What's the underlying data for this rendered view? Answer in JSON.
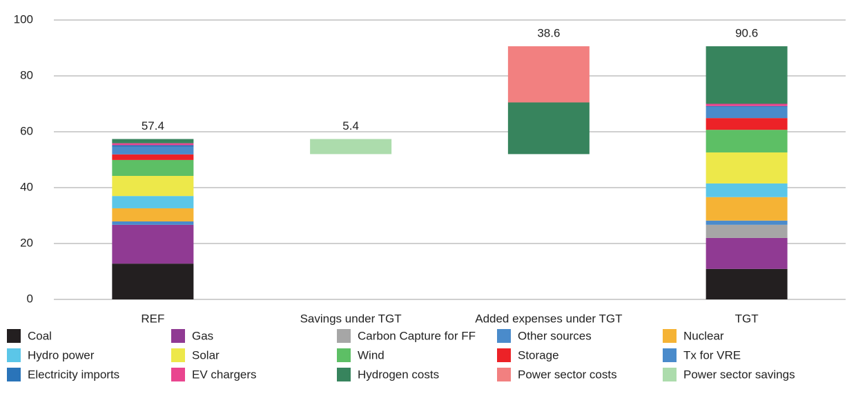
{
  "chart_data": {
    "type": "waterfall",
    "categories": [
      "REF",
      "Savings under TGT",
      "Added expenses under TGT",
      "TGT"
    ],
    "measures": [
      "total",
      "decrease",
      "increase",
      "total"
    ],
    "totals": [
      57.4,
      5.4,
      38.6,
      90.6
    ],
    "series": [
      {
        "name": "Coal",
        "color": "#231f20",
        "values": [
          12.8,
          0,
          0,
          10.9
        ]
      },
      {
        "name": "Gas",
        "color": "#903a93",
        "values": [
          13.9,
          0,
          0,
          11.1
        ]
      },
      {
        "name": "Carbon Capture for FF",
        "color": "#a6a6a6",
        "values": [
          0,
          0,
          0,
          4.7
        ]
      },
      {
        "name": "Other sources",
        "color": "#4a8bcb",
        "values": [
          1.2,
          0,
          0,
          1.5
        ]
      },
      {
        "name": "Nuclear",
        "color": "#f5b335",
        "values": [
          4.7,
          0,
          0,
          8.4
        ]
      },
      {
        "name": "Hydro power",
        "color": "#5bc6e8",
        "values": [
          4.4,
          0,
          0,
          4.9
        ]
      },
      {
        "name": "Solar",
        "color": "#ede84a",
        "values": [
          7.2,
          0,
          0,
          11.1
        ]
      },
      {
        "name": "Wind",
        "color": "#5dbf65",
        "values": [
          5.7,
          0,
          0,
          8.1
        ]
      },
      {
        "name": "Storage",
        "color": "#ec2227",
        "values": [
          2.0,
          0,
          0,
          4.2
        ]
      },
      {
        "name": "Tx for VRE",
        "color": "#4a8bcb",
        "values": [
          2.7,
          0,
          0,
          4.0
        ]
      },
      {
        "name": "Electricity imports",
        "color": "#2a74b9",
        "values": [
          0.6,
          0,
          0,
          0.3
        ]
      },
      {
        "name": "EV chargers",
        "color": "#e9458f",
        "values": [
          0.7,
          0,
          0,
          0.8
        ]
      },
      {
        "name": "Hydrogen costs",
        "color": "#37845d",
        "values": [
          1.5,
          0,
          18.5,
          20.6
        ]
      },
      {
        "name": "Power sector costs",
        "color": "#f28080",
        "values": [
          0,
          0,
          20.1,
          0
        ]
      },
      {
        "name": "Power sector savings",
        "color": "#acdcac",
        "values": [
          0,
          5.4,
          0,
          0
        ]
      }
    ],
    "ylim": [
      0,
      100
    ],
    "yticks": [
      0,
      20,
      40,
      60,
      80,
      100
    ],
    "grid": true,
    "legend": "bottom"
  }
}
